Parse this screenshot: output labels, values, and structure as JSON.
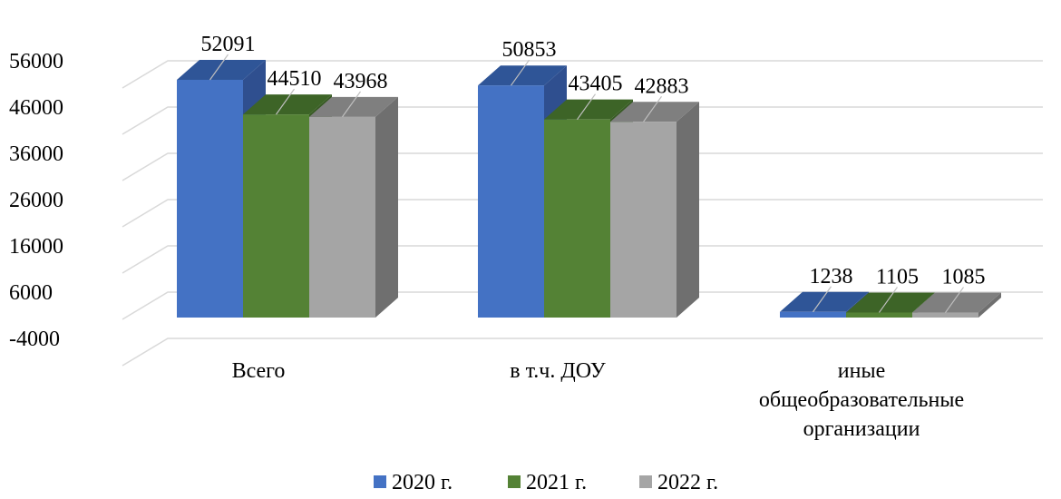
{
  "chart_data": {
    "type": "bar",
    "style": "3d-clustered-column",
    "categories": [
      [
        "Всего"
      ],
      [
        "в т.ч. ДОУ"
      ],
      [
        "иные",
        "общеобразовательные",
        "организации"
      ]
    ],
    "series": [
      {
        "name": "2020 г.",
        "values": [
          52091,
          50853,
          1238
        ],
        "color": "#4472c4",
        "top_color": "#2f5597",
        "side_color": "#2f4f8f"
      },
      {
        "name": "2021 г.",
        "values": [
          44510,
          43405,
          1105
        ],
        "color": "#548235",
        "top_color": "#3d6427",
        "side_color": "#375a23"
      },
      {
        "name": "2022 г.",
        "values": [
          43968,
          42883,
          1085
        ],
        "color": "#a5a5a5",
        "top_color": "#7f7f7f",
        "side_color": "#6f6f6f"
      }
    ],
    "y_ticks": [
      -4000,
      6000,
      16000,
      26000,
      36000,
      46000,
      56000
    ],
    "ylim": [
      -4000,
      56000
    ],
    "grid": true,
    "legend_position": "bottom",
    "data_labels": true
  }
}
